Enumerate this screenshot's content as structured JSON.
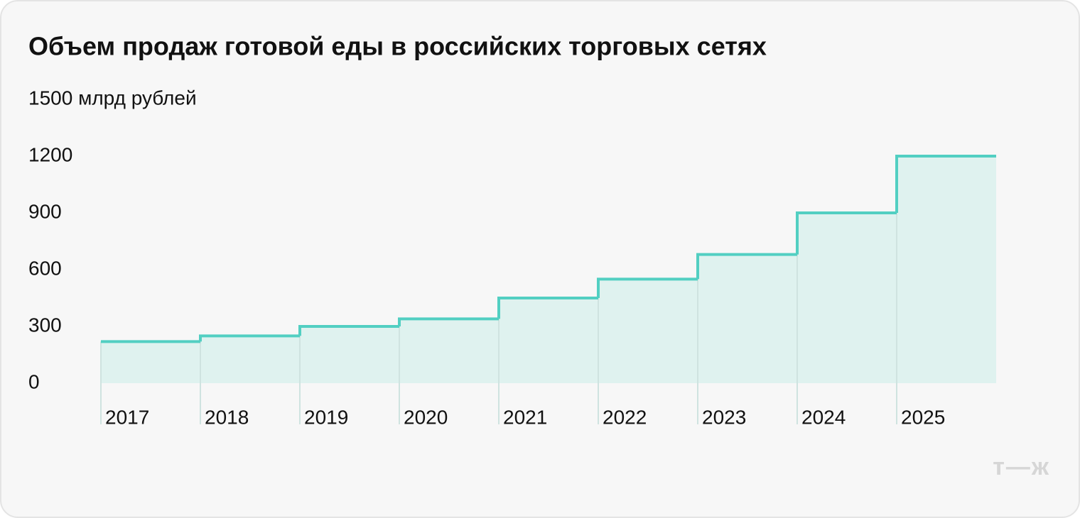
{
  "chart_data": {
    "type": "step",
    "title": "Объем продаж готовой еды в российских торговых сетях",
    "categories": [
      "2017",
      "2018",
      "2019",
      "2020",
      "2021",
      "2022",
      "2023",
      "2024",
      "2025"
    ],
    "values": [
      220,
      250,
      300,
      340,
      450,
      550,
      680,
      900,
      1200
    ],
    "color": "#52cfc2",
    "fill_color": "#dff2ef",
    "ylim": [
      0,
      1500
    ],
    "yticks": [
      0,
      300,
      600,
      900,
      1200,
      {
        "value": 1500,
        "label": "1500 млрд рублей"
      }
    ],
    "grid": false,
    "brand": "т—ж"
  }
}
